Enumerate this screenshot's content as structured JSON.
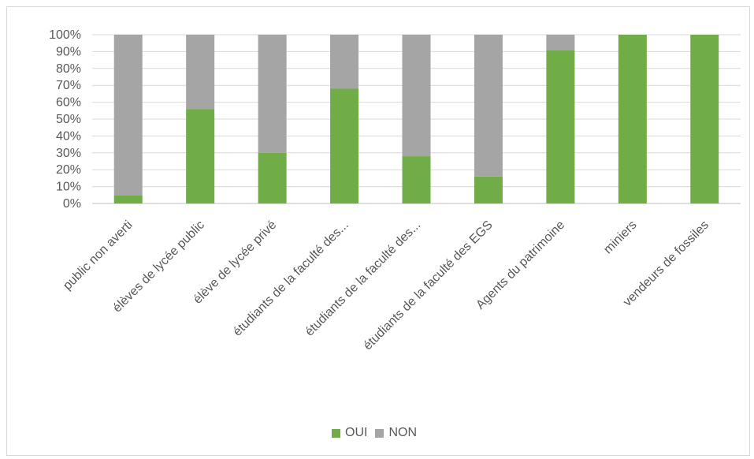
{
  "chart_data": {
    "type": "bar",
    "stacked": true,
    "percent_stacked": true,
    "categories": [
      "public non averti",
      "élèves de lycée public",
      "élève de lycée privé",
      "étudiants de la faculté des...",
      "étudiants de la faculté des...",
      "étudiants de la faculté des EGS",
      "Agents du patrimoine",
      "miniers",
      "vendeurs de fossiles"
    ],
    "series": [
      {
        "name": "OUI",
        "color": "#70ad47",
        "values": [
          5,
          56,
          30,
          68,
          28,
          16,
          91,
          100,
          100
        ]
      },
      {
        "name": "NON",
        "color": "#a5a5a5",
        "values": [
          95,
          44,
          70,
          32,
          72,
          84,
          9,
          0,
          0
        ]
      }
    ],
    "y_ticks": [
      "0%",
      "10%",
      "20%",
      "30%",
      "40%",
      "50%",
      "60%",
      "70%",
      "80%",
      "90%",
      "100%"
    ],
    "ylim": [
      0,
      100
    ],
    "grid": true,
    "legend_position": "bottom",
    "title": "",
    "xlabel": "",
    "ylabel": ""
  }
}
